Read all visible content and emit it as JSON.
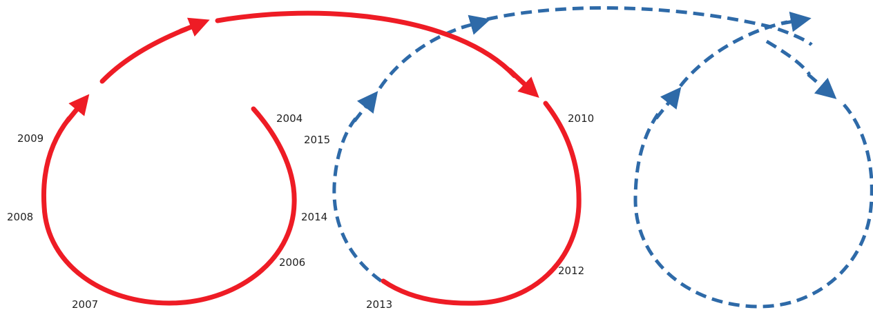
{
  "colors": {
    "solid_path": "#ee1c25",
    "dashed_path": "#2e6aa8",
    "label": "#222222"
  },
  "year_labels": {
    "y2004": "2004",
    "y2006": "2006",
    "y2007": "2007",
    "y2008": "2008",
    "y2009": "2009",
    "y2010": "2010",
    "y2012": "2012",
    "y2013": "2013",
    "y2014": "2014",
    "y2015": "2015"
  }
}
